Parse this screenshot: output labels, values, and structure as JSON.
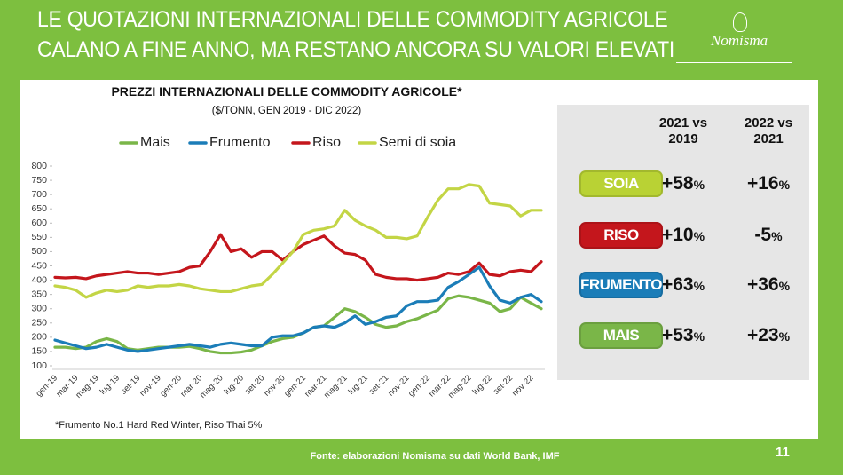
{
  "header": {
    "title_lines": [
      "LE QUOTAZIONI INTERNAZIONALI DELLE COMMODITY AGRICOLE",
      "CALANO A FINE ANNO, MA RESTANO ANCORA SU VALORI ELEVATI"
    ],
    "logo": "Nomisma"
  },
  "chart_data": {
    "type": "line",
    "title": "PREZZI INTERNAZIONALI DELLE COMMODITY AGRICOLE*",
    "subtitle": "($/TONN, GEN 2019 - DIC 2022)",
    "categories": [
      "gen-19",
      null,
      "mar-19",
      null,
      "mag-19",
      null,
      "lug-19",
      null,
      "set-19",
      null,
      "nov-19",
      null,
      "gen-20",
      null,
      "mar-20",
      null,
      "mag-20",
      null,
      "lug-20",
      null,
      "set-20",
      null,
      "nov-20",
      null,
      "gen-21",
      null,
      "mar-21",
      null,
      "mag-21",
      null,
      "lug-21",
      null,
      "set-21",
      null,
      "nov-21",
      null,
      "gen-22",
      null,
      "mar-22",
      null,
      "mag-22",
      null,
      "lug-22",
      null,
      "set-22",
      null,
      "nov-22",
      null
    ],
    "series": [
      {
        "name": "Mais",
        "color": "#7ab648",
        "values": [
          165,
          165,
          160,
          165,
          185,
          195,
          185,
          160,
          155,
          160,
          165,
          165,
          165,
          168,
          160,
          150,
          145,
          145,
          148,
          155,
          170,
          185,
          195,
          200,
          215,
          235,
          240,
          270,
          300,
          290,
          270,
          245,
          235,
          240,
          255,
          265,
          280,
          295,
          335,
          345,
          340,
          330,
          320,
          290,
          300,
          340,
          320,
          300
        ]
      },
      {
        "name": "Frumento",
        "color": "#1b7db8",
        "values": [
          190,
          180,
          170,
          160,
          165,
          175,
          165,
          155,
          150,
          155,
          160,
          165,
          170,
          175,
          170,
          165,
          175,
          180,
          175,
          170,
          170,
          200,
          205,
          205,
          215,
          235,
          240,
          235,
          250,
          275,
          245,
          255,
          270,
          275,
          310,
          325,
          325,
          330,
          375,
          395,
          420,
          445,
          380,
          330,
          320,
          340,
          350,
          325
        ]
      },
      {
        "name": "Riso",
        "color": "#c4161c",
        "values": [
          410,
          408,
          410,
          405,
          415,
          420,
          425,
          430,
          425,
          425,
          420,
          425,
          430,
          445,
          450,
          500,
          560,
          500,
          510,
          480,
          500,
          500,
          470,
          500,
          525,
          540,
          555,
          520,
          495,
          490,
          470,
          420,
          410,
          405,
          405,
          400,
          405,
          410,
          425,
          420,
          430,
          460,
          420,
          415,
          430,
          435,
          430,
          465
        ]
      },
      {
        "name": "Semi di soia",
        "color": "#c3d545",
        "values": [
          380,
          375,
          365,
          340,
          355,
          365,
          360,
          365,
          380,
          375,
          380,
          380,
          385,
          380,
          370,
          365,
          360,
          360,
          370,
          380,
          385,
          420,
          460,
          500,
          560,
          575,
          580,
          590,
          645,
          610,
          590,
          575,
          550,
          550,
          545,
          555,
          620,
          680,
          720,
          720,
          735,
          730,
          670,
          665,
          660,
          625,
          645,
          645
        ]
      }
    ],
    "ylim": [
      100,
      800
    ],
    "yticks": [
      100,
      150,
      200,
      250,
      300,
      350,
      400,
      450,
      500,
      550,
      600,
      650,
      700,
      750,
      800
    ],
    "legend": "top"
  },
  "table": {
    "columns": [
      "2021 vs 2019",
      "2022 vs 2021"
    ],
    "rows": [
      {
        "label": "SOIA",
        "color": "#b9d234",
        "values": [
          "+58%",
          "+16%"
        ]
      },
      {
        "label": "RISO",
        "color": "#c4161c",
        "values": [
          "+10%",
          "-5%"
        ]
      },
      {
        "label": "FRUMENTO",
        "color": "#1b7db8",
        "values": [
          "+63%",
          "+36%"
        ]
      },
      {
        "label": "MAIS",
        "color": "#7ab648",
        "values": [
          "+53%",
          "+23%"
        ]
      }
    ]
  },
  "note": "*Frumento No.1 Hard Red Winter, Riso Thai 5%",
  "footer": {
    "source": "Fonte: elaborazioni Nomisma su dati World Bank, IMF",
    "page": "11"
  }
}
